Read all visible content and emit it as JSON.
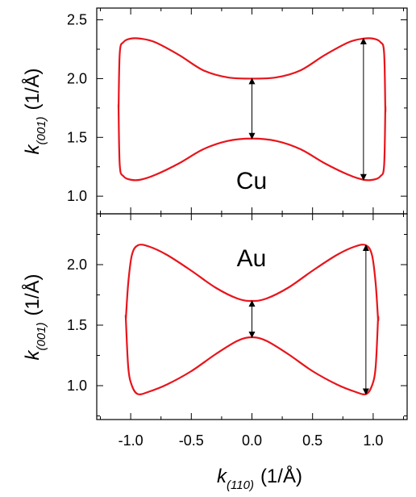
{
  "chart_data": [
    {
      "type": "line",
      "panel_label": "Cu",
      "xlabel": {
        "base": "k",
        "sub": "(110)",
        "units": "(1/Å)"
      },
      "ylabel": {
        "base": "k",
        "sub": "(001)",
        "units": "(1/Å)"
      },
      "xlim": [
        -1.28,
        1.28
      ],
      "ylim": [
        0.85,
        2.6
      ],
      "yticks": [
        "1.0",
        "1.5",
        "2.0",
        "2.5"
      ],
      "ytick_values": [
        1.0,
        1.5,
        2.0,
        2.5
      ],
      "line_color": "#e8141b",
      "series": [
        {
          "x": [
            -1.1,
            -1.09,
            -1.06,
            -1.0,
            -0.92,
            -0.8,
            -0.6,
            -0.4,
            -0.2,
            0.0,
            0.2,
            0.4,
            0.6,
            0.8,
            0.92,
            1.0,
            1.06,
            1.09,
            1.1,
            1.1,
            1.09,
            1.06,
            1.0,
            0.92,
            0.8,
            0.6,
            0.4,
            0.2,
            0.0,
            -0.2,
            -0.4,
            -0.6,
            -0.8,
            -0.92,
            -1.0,
            -1.06,
            -1.09,
            -1.1,
            -1.1
          ],
          "y": [
            1.74,
            2.22,
            2.31,
            2.34,
            2.34,
            2.31,
            2.2,
            2.07,
            2.01,
            2.0,
            2.01,
            2.07,
            2.2,
            2.31,
            2.34,
            2.34,
            2.31,
            2.22,
            1.74,
            1.74,
            1.26,
            1.17,
            1.14,
            1.14,
            1.18,
            1.28,
            1.4,
            1.47,
            1.49,
            1.47,
            1.4,
            1.28,
            1.18,
            1.14,
            1.14,
            1.17,
            1.26,
            1.74,
            1.74
          ]
        }
      ],
      "arrows": [
        {
          "x": 0.0,
          "y1": 1.49,
          "y2": 2.0
        },
        {
          "x": 0.92,
          "y1": 1.14,
          "y2": 2.34
        }
      ]
    },
    {
      "type": "line",
      "panel_label": "Au",
      "xlabel": {
        "base": "k",
        "sub": "(110)",
        "units": "(1/Å)"
      },
      "ylabel": {
        "base": "k",
        "sub": "(001)",
        "units": "(1/Å)"
      },
      "xlim": [
        -1.28,
        1.28
      ],
      "ylim": [
        0.72,
        2.42
      ],
      "xticks": [
        "-1.0",
        "-0.5",
        "0.0",
        "0.5",
        "1.0"
      ],
      "xtick_values": [
        -1.0,
        -0.5,
        0.0,
        0.5,
        1.0
      ],
      "yticks": [
        "1.0",
        "1.5",
        "2.0"
      ],
      "ytick_values": [
        1.0,
        1.5,
        2.0
      ],
      "line_color": "#e8141b",
      "series": [
        {
          "x": [
            -1.04,
            -1.02,
            -0.99,
            -0.94,
            -0.85,
            -0.7,
            -0.5,
            -0.3,
            -0.12,
            0.0,
            0.12,
            0.3,
            0.5,
            0.7,
            0.85,
            0.94,
            0.99,
            1.02,
            1.04,
            1.04,
            1.02,
            0.99,
            0.94,
            0.85,
            0.7,
            0.5,
            0.3,
            0.12,
            0.0,
            -0.12,
            -0.3,
            -0.5,
            -0.7,
            -0.85,
            -0.94,
            -0.99,
            -1.02,
            -1.04,
            -1.04
          ],
          "y": [
            1.55,
            1.85,
            2.08,
            2.16,
            2.15,
            2.08,
            1.95,
            1.81,
            1.72,
            1.7,
            1.72,
            1.81,
            1.95,
            2.08,
            2.15,
            2.16,
            2.08,
            1.85,
            1.55,
            1.55,
            1.15,
            1.0,
            0.93,
            0.95,
            1.01,
            1.12,
            1.26,
            1.37,
            1.4,
            1.37,
            1.26,
            1.12,
            1.01,
            0.95,
            0.93,
            1.0,
            1.15,
            1.55,
            1.55
          ]
        }
      ],
      "arrows": [
        {
          "x": 0.0,
          "y1": 1.4,
          "y2": 1.7
        },
        {
          "x": 0.94,
          "y1": 0.93,
          "y2": 2.16
        }
      ]
    }
  ]
}
